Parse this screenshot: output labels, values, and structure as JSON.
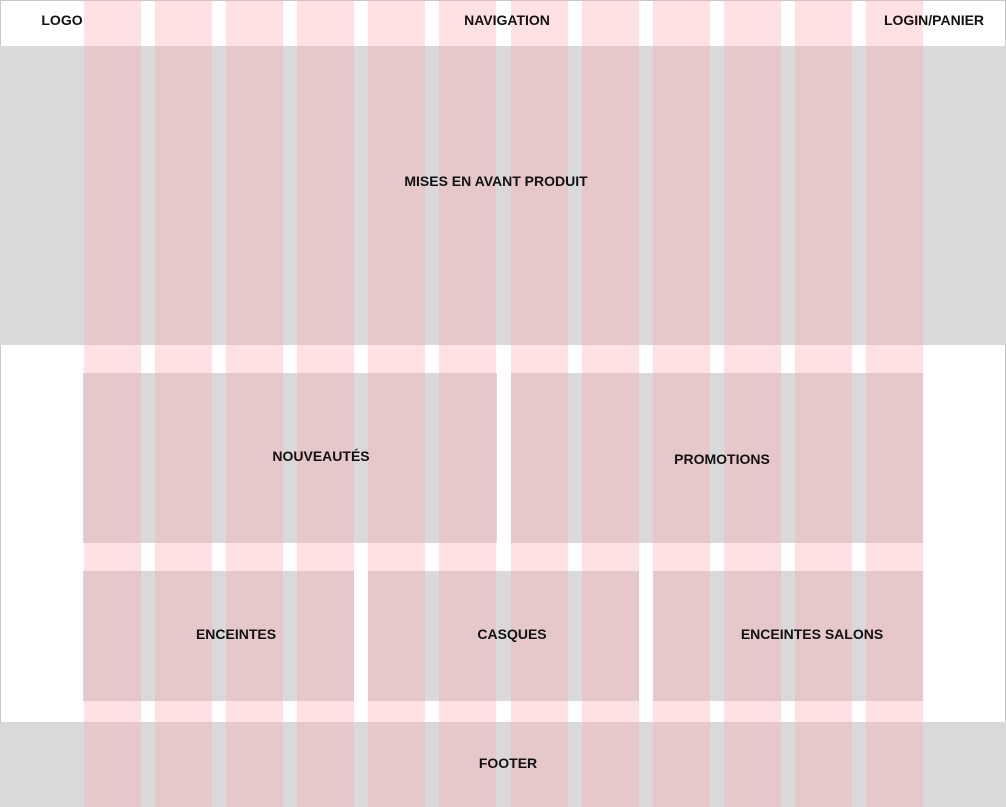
{
  "header": {
    "logo": "LOGO",
    "navigation": "NAVIGATION",
    "login_cart": "LOGIN/PANIER"
  },
  "hero": {
    "label": "MISES EN AVANT PRODUIT"
  },
  "row_two": {
    "left": "NOUVEAUTÉS",
    "right": "PROMOTIONS"
  },
  "row_three": {
    "left": "ENCEINTES",
    "middle": "CASQUES",
    "right": "ENCEINTES SALONS"
  },
  "footer": {
    "label": "FOOTER"
  },
  "colors": {
    "block_gray": "#d9d9d9",
    "grid_column": "#ffaaaf",
    "text": "#111111"
  }
}
